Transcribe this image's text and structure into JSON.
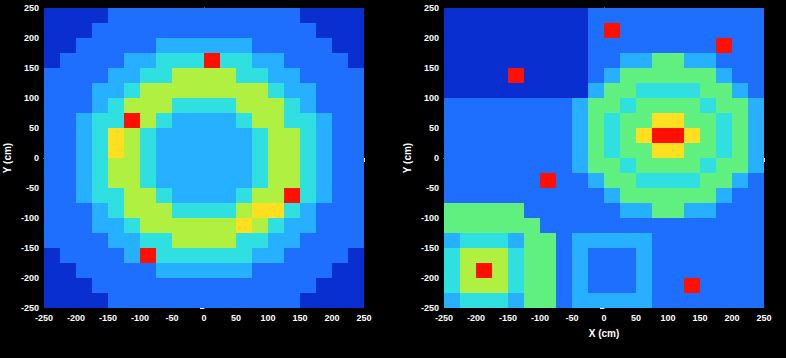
{
  "chart_data": [
    {
      "type": "heatmap",
      "ylabel": "Y (cm)",
      "xlim": [
        -250,
        250
      ],
      "ylim": [
        -250,
        250
      ],
      "xticks": [
        -250,
        -200,
        -150,
        -100,
        -50,
        0,
        50,
        100,
        150,
        200,
        250
      ],
      "yticks": [
        -250,
        -200,
        -150,
        -100,
        -50,
        0,
        50,
        100,
        150,
        200,
        250
      ],
      "zlim": [
        0,
        9
      ],
      "x": [
        -237.5,
        -212.5,
        -187.5,
        -162.5,
        -137.5,
        -112.5,
        -87.5,
        -62.5,
        -37.5,
        -12.5,
        12.5,
        37.5,
        62.5,
        87.5,
        112.5,
        137.5,
        162.5,
        187.5,
        212.5,
        237.5
      ],
      "y": [
        237.5,
        212.5,
        187.5,
        162.5,
        137.5,
        112.5,
        87.5,
        62.5,
        37.5,
        12.5,
        -12.5,
        -37.5,
        -62.5,
        -87.5,
        -112.5,
        -137.5,
        -162.5,
        -187.5,
        -212.5,
        -237.5
      ],
      "cells": [
        [
          1,
          1,
          1,
          1,
          2,
          2,
          2,
          2,
          2,
          2,
          2,
          2,
          2,
          2,
          2,
          2,
          1,
          1,
          1,
          1
        ],
        [
          1,
          1,
          1,
          2,
          2,
          2,
          2,
          2,
          2,
          2,
          2,
          2,
          2,
          2,
          2,
          2,
          2,
          1,
          1,
          1
        ],
        [
          1,
          1,
          2,
          2,
          2,
          2,
          2,
          3,
          3,
          3,
          3,
          3,
          3,
          2,
          2,
          2,
          2,
          2,
          1,
          1
        ],
        [
          1,
          2,
          2,
          2,
          2,
          3,
          3,
          4,
          4,
          4,
          9,
          4,
          4,
          3,
          3,
          2,
          2,
          2,
          2,
          1
        ],
        [
          2,
          2,
          2,
          2,
          3,
          3,
          4,
          4,
          6,
          6,
          6,
          6,
          4,
          4,
          3,
          3,
          2,
          2,
          2,
          2
        ],
        [
          2,
          2,
          2,
          3,
          3,
          4,
          6,
          6,
          6,
          6,
          6,
          6,
          6,
          6,
          4,
          3,
          3,
          2,
          2,
          2
        ],
        [
          2,
          2,
          2,
          3,
          4,
          6,
          6,
          6,
          4,
          4,
          4,
          4,
          6,
          6,
          6,
          4,
          3,
          2,
          2,
          2
        ],
        [
          2,
          2,
          3,
          4,
          4,
          9,
          6,
          4,
          3,
          3,
          3,
          3,
          4,
          6,
          6,
          4,
          4,
          3,
          2,
          2
        ],
        [
          2,
          2,
          3,
          4,
          7,
          6,
          4,
          3,
          3,
          3,
          3,
          3,
          3,
          4,
          6,
          6,
          4,
          3,
          2,
          2
        ],
        [
          2,
          2,
          3,
          4,
          7,
          6,
          4,
          3,
          3,
          3,
          3,
          3,
          3,
          4,
          6,
          6,
          4,
          3,
          2,
          2
        ],
        [
          2,
          2,
          3,
          4,
          6,
          6,
          4,
          3,
          3,
          3,
          3,
          3,
          3,
          4,
          6,
          6,
          4,
          3,
          2,
          2
        ],
        [
          2,
          2,
          3,
          4,
          6,
          6,
          4,
          3,
          3,
          3,
          3,
          3,
          3,
          4,
          6,
          6,
          4,
          3,
          2,
          2
        ],
        [
          2,
          2,
          3,
          4,
          4,
          6,
          6,
          4,
          3,
          3,
          3,
          3,
          4,
          6,
          6,
          9,
          4,
          3,
          2,
          2
        ],
        [
          2,
          2,
          2,
          3,
          4,
          6,
          6,
          6,
          4,
          4,
          4,
          4,
          6,
          7,
          7,
          4,
          3,
          2,
          2,
          2
        ],
        [
          2,
          2,
          2,
          3,
          3,
          4,
          6,
          6,
          6,
          6,
          6,
          6,
          7,
          6,
          4,
          3,
          3,
          2,
          2,
          2
        ],
        [
          2,
          2,
          2,
          2,
          3,
          3,
          4,
          4,
          6,
          6,
          6,
          6,
          4,
          4,
          3,
          3,
          2,
          2,
          2,
          2
        ],
        [
          1,
          2,
          2,
          2,
          2,
          3,
          9,
          4,
          4,
          4,
          4,
          4,
          4,
          3,
          3,
          2,
          2,
          2,
          2,
          1
        ],
        [
          1,
          1,
          2,
          2,
          2,
          2,
          2,
          3,
          3,
          3,
          3,
          3,
          3,
          2,
          2,
          2,
          2,
          2,
          1,
          1
        ],
        [
          1,
          1,
          1,
          2,
          2,
          2,
          2,
          2,
          2,
          2,
          2,
          2,
          2,
          2,
          2,
          2,
          2,
          1,
          1,
          1
        ],
        [
          1,
          1,
          1,
          1,
          2,
          2,
          2,
          2,
          2,
          2,
          2,
          2,
          2,
          2,
          2,
          2,
          1,
          1,
          1,
          1
        ]
      ]
    },
    {
      "type": "heatmap",
      "xlabel": "X (cm)",
      "ylabel": "Y (cm)",
      "xlim": [
        -250,
        250
      ],
      "ylim": [
        -250,
        250
      ],
      "xticks": [
        -250,
        -200,
        -150,
        -100,
        -50,
        0,
        50,
        100,
        150,
        200,
        250
      ],
      "yticks": [
        -250,
        -200,
        -150,
        -100,
        -50,
        0,
        50,
        100,
        150,
        200,
        250
      ],
      "zlim": [
        0,
        9
      ],
      "x": [
        -237.5,
        -212.5,
        -187.5,
        -162.5,
        -137.5,
        -112.5,
        -87.5,
        -62.5,
        -37.5,
        -12.5,
        12.5,
        37.5,
        62.5,
        87.5,
        112.5,
        137.5,
        162.5,
        187.5,
        212.5,
        237.5
      ],
      "y": [
        237.5,
        212.5,
        187.5,
        162.5,
        137.5,
        112.5,
        87.5,
        62.5,
        37.5,
        12.5,
        -12.5,
        -37.5,
        -62.5,
        -87.5,
        -112.5,
        -137.5,
        -162.5,
        -187.5,
        -212.5,
        -237.5
      ],
      "cells": [
        [
          1,
          1,
          1,
          1,
          1,
          1,
          1,
          1,
          1,
          2,
          2,
          2,
          2,
          2,
          2,
          2,
          2,
          2,
          2,
          2
        ],
        [
          1,
          1,
          1,
          1,
          1,
          1,
          1,
          1,
          1,
          2,
          9,
          2,
          2,
          2,
          2,
          2,
          2,
          2,
          2,
          2
        ],
        [
          1,
          1,
          1,
          1,
          1,
          1,
          1,
          1,
          1,
          2,
          2,
          2,
          2,
          2,
          2,
          2,
          2,
          9,
          2,
          2
        ],
        [
          1,
          1,
          1,
          1,
          1,
          1,
          1,
          1,
          1,
          2,
          2,
          3,
          3,
          5,
          5,
          3,
          3,
          2,
          2,
          2
        ],
        [
          1,
          1,
          1,
          1,
          9,
          1,
          1,
          1,
          1,
          2,
          3,
          5,
          5,
          5,
          5,
          5,
          5,
          3,
          2,
          2
        ],
        [
          1,
          1,
          1,
          1,
          1,
          1,
          1,
          1,
          1,
          3,
          5,
          5,
          4,
          4,
          4,
          4,
          5,
          5,
          3,
          2
        ],
        [
          2,
          2,
          2,
          2,
          2,
          2,
          2,
          2,
          3,
          5,
          5,
          4,
          5,
          5,
          5,
          5,
          4,
          5,
          5,
          3
        ],
        [
          2,
          2,
          2,
          2,
          2,
          2,
          2,
          2,
          3,
          5,
          4,
          5,
          5,
          7,
          7,
          5,
          5,
          4,
          5,
          3
        ],
        [
          2,
          2,
          2,
          2,
          2,
          2,
          2,
          2,
          3,
          5,
          4,
          5,
          7,
          9,
          9,
          7,
          5,
          4,
          5,
          3
        ],
        [
          2,
          2,
          2,
          2,
          2,
          2,
          2,
          2,
          3,
          5,
          4,
          5,
          5,
          7,
          7,
          5,
          5,
          4,
          5,
          3
        ],
        [
          2,
          2,
          2,
          2,
          2,
          2,
          2,
          2,
          3,
          5,
          5,
          4,
          5,
          5,
          5,
          5,
          4,
          5,
          5,
          3
        ],
        [
          2,
          2,
          2,
          2,
          2,
          2,
          9,
          2,
          2,
          3,
          5,
          5,
          4,
          4,
          4,
          4,
          5,
          5,
          3,
          2
        ],
        [
          2,
          2,
          2,
          2,
          2,
          2,
          2,
          2,
          2,
          2,
          3,
          5,
          5,
          5,
          5,
          5,
          5,
          3,
          2,
          2
        ],
        [
          5,
          5,
          5,
          5,
          5,
          2,
          2,
          2,
          2,
          2,
          2,
          3,
          3,
          5,
          5,
          3,
          3,
          2,
          2,
          2
        ],
        [
          5,
          5,
          5,
          5,
          5,
          5,
          2,
          2,
          2,
          2,
          2,
          2,
          2,
          2,
          2,
          2,
          2,
          2,
          2,
          2
        ],
        [
          3,
          4,
          4,
          4,
          3,
          5,
          5,
          2,
          3,
          3,
          3,
          3,
          3,
          2,
          2,
          2,
          2,
          2,
          2,
          2
        ],
        [
          4,
          6,
          6,
          6,
          4,
          5,
          5,
          2,
          3,
          2,
          2,
          2,
          3,
          2,
          2,
          2,
          2,
          2,
          2,
          2
        ],
        [
          4,
          6,
          9,
          6,
          4,
          5,
          5,
          2,
          3,
          2,
          2,
          2,
          3,
          2,
          2,
          2,
          2,
          2,
          2,
          2
        ],
        [
          4,
          6,
          6,
          6,
          4,
          5,
          5,
          2,
          3,
          2,
          2,
          2,
          3,
          2,
          2,
          9,
          2,
          2,
          2,
          2
        ],
        [
          3,
          4,
          4,
          4,
          3,
          5,
          5,
          2,
          3,
          3,
          3,
          3,
          3,
          2,
          2,
          2,
          2,
          2,
          2,
          2
        ]
      ]
    }
  ]
}
